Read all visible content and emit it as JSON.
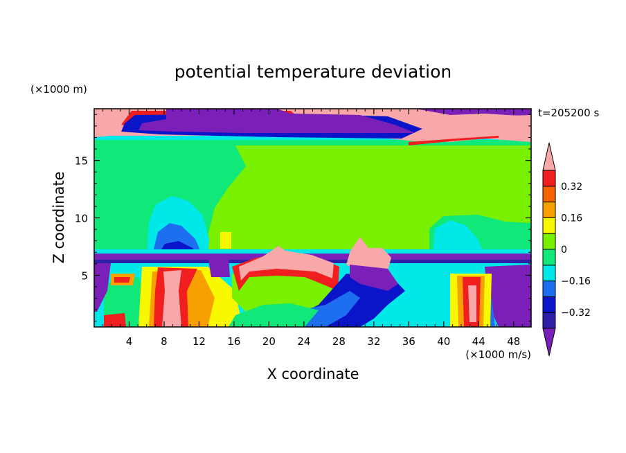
{
  "chart_data": {
    "type": "heatmap",
    "title": "potential temperature deviation",
    "xlabel": "X coordinate",
    "ylabel": "Z coordinate",
    "x_unit": "(×1000 m/s)",
    "y_unit": "(×1000 m)",
    "time_label": "t=205200 s",
    "xlim": [
      0,
      50
    ],
    "ylim": [
      0.5,
      19.5
    ],
    "x_ticks": [
      4,
      8,
      12,
      16,
      20,
      24,
      28,
      32,
      36,
      40,
      44,
      48
    ],
    "y_ticks": [
      5,
      10,
      15
    ],
    "colorbar": {
      "levels": [
        -0.4,
        -0.32,
        -0.24,
        -0.16,
        -0.08,
        0,
        0.08,
        0.16,
        0.24,
        0.32,
        0.4
      ],
      "tick_values": [
        -0.32,
        -0.16,
        0,
        0.16,
        0.32
      ],
      "tick_labels": [
        "−0.32",
        "−0.16",
        "0",
        "0.16",
        "0.32"
      ],
      "colors": [
        "#7a1fb8",
        "#2d1fa8",
        "#0a14c8",
        "#1e6ef0",
        "#00e8e8",
        "#10e87a",
        "#78f000",
        "#f8f800",
        "#f8a000",
        "#f86400",
        "#f01e1e",
        "#f8a8a8"
      ],
      "extend": "both"
    }
  }
}
